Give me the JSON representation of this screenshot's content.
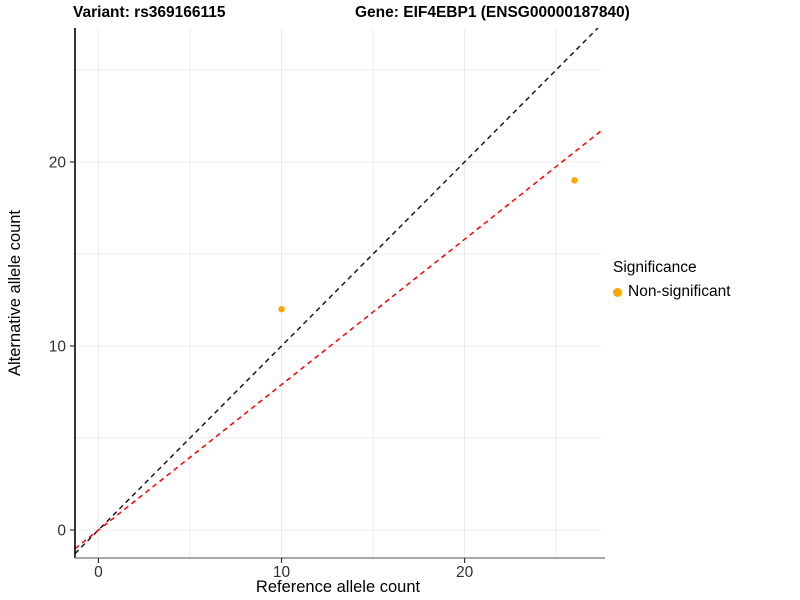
{
  "chart_data": {
    "type": "scatter",
    "title_left": "Variant: rs369166115",
    "title_right": "Gene: EIF4EBP1 (ENSG00000187840)",
    "xlabel": "Reference allele count",
    "ylabel": "Alternative allele count",
    "xlim": [
      -1.28,
      27.45
    ],
    "ylim": [
      -1.52,
      27.28
    ],
    "x_ticks": [
      0,
      10,
      20
    ],
    "y_ticks": [
      0,
      10,
      20
    ],
    "grid": true,
    "grid_step": 5,
    "points": [
      {
        "x": 10,
        "y": 12,
        "series": "Non-significant"
      },
      {
        "x": 26,
        "y": 19,
        "series": "Non-significant"
      }
    ],
    "lines": [
      {
        "name": "identity-line",
        "slope": 1,
        "intercept": 0,
        "color": "#1a1a1a",
        "dash": true
      },
      {
        "name": "fit-line",
        "slope": 0.79,
        "intercept": 0,
        "color": "#ff0000",
        "dash": true
      }
    ],
    "legend": {
      "title": "Significance",
      "position": "right",
      "items": [
        {
          "label": "Non-significant",
          "color": "#FFA500"
        }
      ]
    },
    "colors": {
      "point": "#FFA500",
      "grid": "#EBEBEB",
      "y_axis_line": "#000000",
      "x_axis_line": "#8C8C8C",
      "tick": "#333333",
      "tick_label": "#303030",
      "axis_title": "#000000"
    }
  }
}
